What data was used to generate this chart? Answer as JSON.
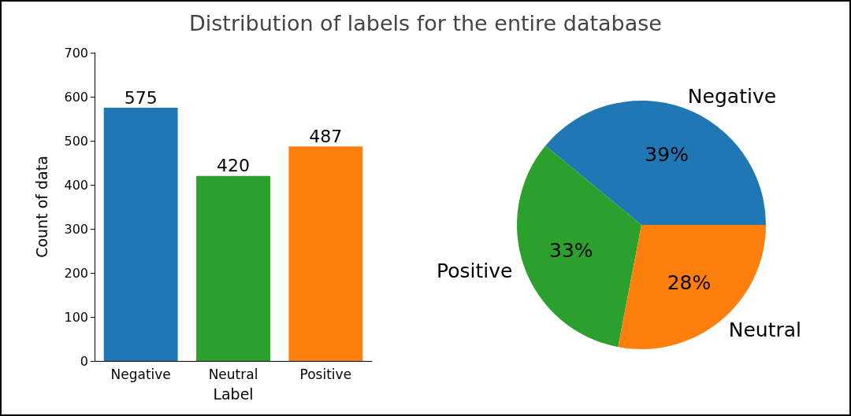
{
  "chart_data": [
    {
      "type": "bar",
      "title": "Distribution of labels for the entire database",
      "xlabel": "Label",
      "ylabel": "Count of data",
      "categories": [
        "Negative",
        "Neutral",
        "Positive"
      ],
      "values": [
        575,
        420,
        487
      ],
      "colors": [
        "#1f77b4",
        "#2ca02c",
        "#ff7f0e"
      ],
      "ylim": [
        0,
        700
      ],
      "yticks": [
        0,
        100,
        200,
        300,
        400,
        500,
        600,
        700
      ],
      "data_labels": true,
      "grid": false
    },
    {
      "type": "pie",
      "categories": [
        "Negative",
        "Positive",
        "Neutral"
      ],
      "values": [
        39,
        33,
        28
      ],
      "colors": [
        "#1f77b4",
        "#2ca02c",
        "#ff7f0e"
      ],
      "value_labels": [
        "39%",
        "33%",
        "28%"
      ]
    }
  ]
}
